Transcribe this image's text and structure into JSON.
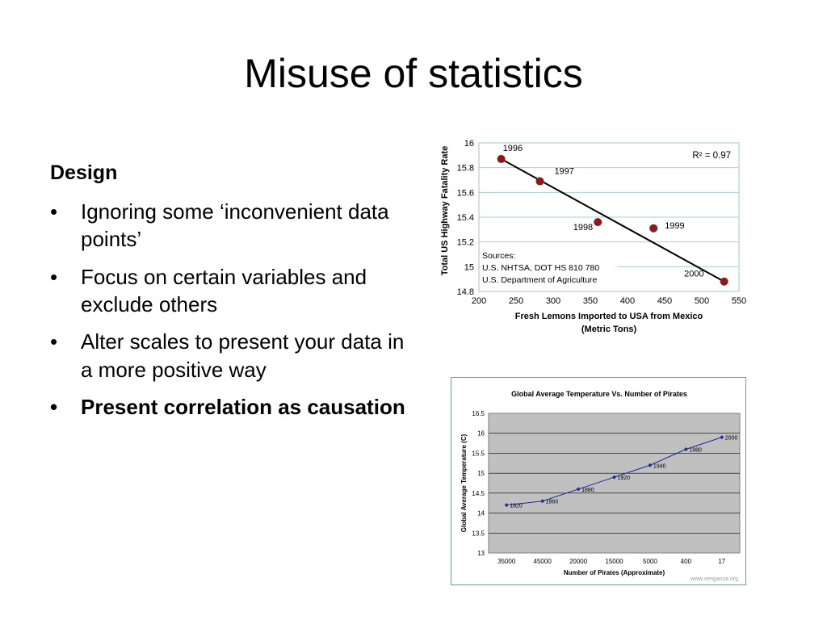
{
  "slide": {
    "title": "Misuse of statistics",
    "section_heading": "Design",
    "bullet_symbol": "•",
    "bullets": [
      "Ignoring some ‘inconvenient data points’",
      "Focus on certain variables and exclude others",
      "Alter scales to present your data in a more positive way",
      "Present correlation as causation"
    ]
  },
  "chart_data": [
    {
      "type": "scatter",
      "title": "",
      "xlabel": "Fresh Lemons Imported to USA from Mexico",
      "xlabel_line2": "(Metric Tons)",
      "ylabel": "Total US Highway Fatality Rate",
      "xlim": [
        200,
        550
      ],
      "ylim": [
        14.8,
        16
      ],
      "xticks": [
        200,
        250,
        300,
        350,
        400,
        450,
        500,
        550
      ],
      "yticks": [
        14.8,
        15,
        15.2,
        15.4,
        15.6,
        15.8,
        16
      ],
      "ytick_labels": [
        "14.8",
        "15",
        "15.2",
        "15.4",
        "15.6",
        "15.8",
        "16"
      ],
      "grid": "horizontal",
      "points": [
        {
          "label": "1996",
          "x": 230,
          "y": 15.87
        },
        {
          "label": "1997",
          "x": 282,
          "y": 15.69
        },
        {
          "label": "1998",
          "x": 360,
          "y": 15.36
        },
        {
          "label": "1999",
          "x": 435,
          "y": 15.31
        },
        {
          "label": "2000",
          "x": 530,
          "y": 14.88
        }
      ],
      "trendline": {
        "x": [
          230,
          530
        ],
        "y": [
          15.87,
          14.88
        ]
      },
      "annotation_r2": "R² = 0.97",
      "sources": [
        "Sources:",
        "U.S. NHTSA, DOT HS 810 780",
        "U.S. Department of Agriculture"
      ],
      "colors": {
        "marker": "#8b1a1a",
        "line": "#000000",
        "grid": "#a8d0d0",
        "frame": "#9fc7c7"
      }
    },
    {
      "type": "line",
      "title": "Global Average Temperature Vs. Number of Pirates",
      "xlabel": "Number of Pirates (Approximate)",
      "ylabel": "Global Average Temperature (C)",
      "categories": [
        "35000",
        "45000",
        "20000",
        "15000",
        "5000",
        "400",
        "17"
      ],
      "ylim": [
        13,
        16.5
      ],
      "yticks": [
        13,
        13.5,
        14,
        14.5,
        15,
        15.5,
        16,
        16.5
      ],
      "ytick_labels": [
        "13",
        "13.5",
        "14",
        "14.5",
        "15",
        "15.5",
        "16",
        "16.5"
      ],
      "grid": "horizontal",
      "values": [
        14.2,
        14.3,
        14.6,
        14.9,
        15.2,
        15.6,
        15.9
      ],
      "point_labels": [
        "1820",
        "1860",
        "1880",
        "1920",
        "1940",
        "1980",
        "2000"
      ],
      "watermark": "www.venganza.org",
      "colors": {
        "line": "#1a2a9c",
        "plot_bg": "#c0c0c0",
        "grid": "#000000",
        "frame": "#7a9a9a"
      }
    }
  ]
}
